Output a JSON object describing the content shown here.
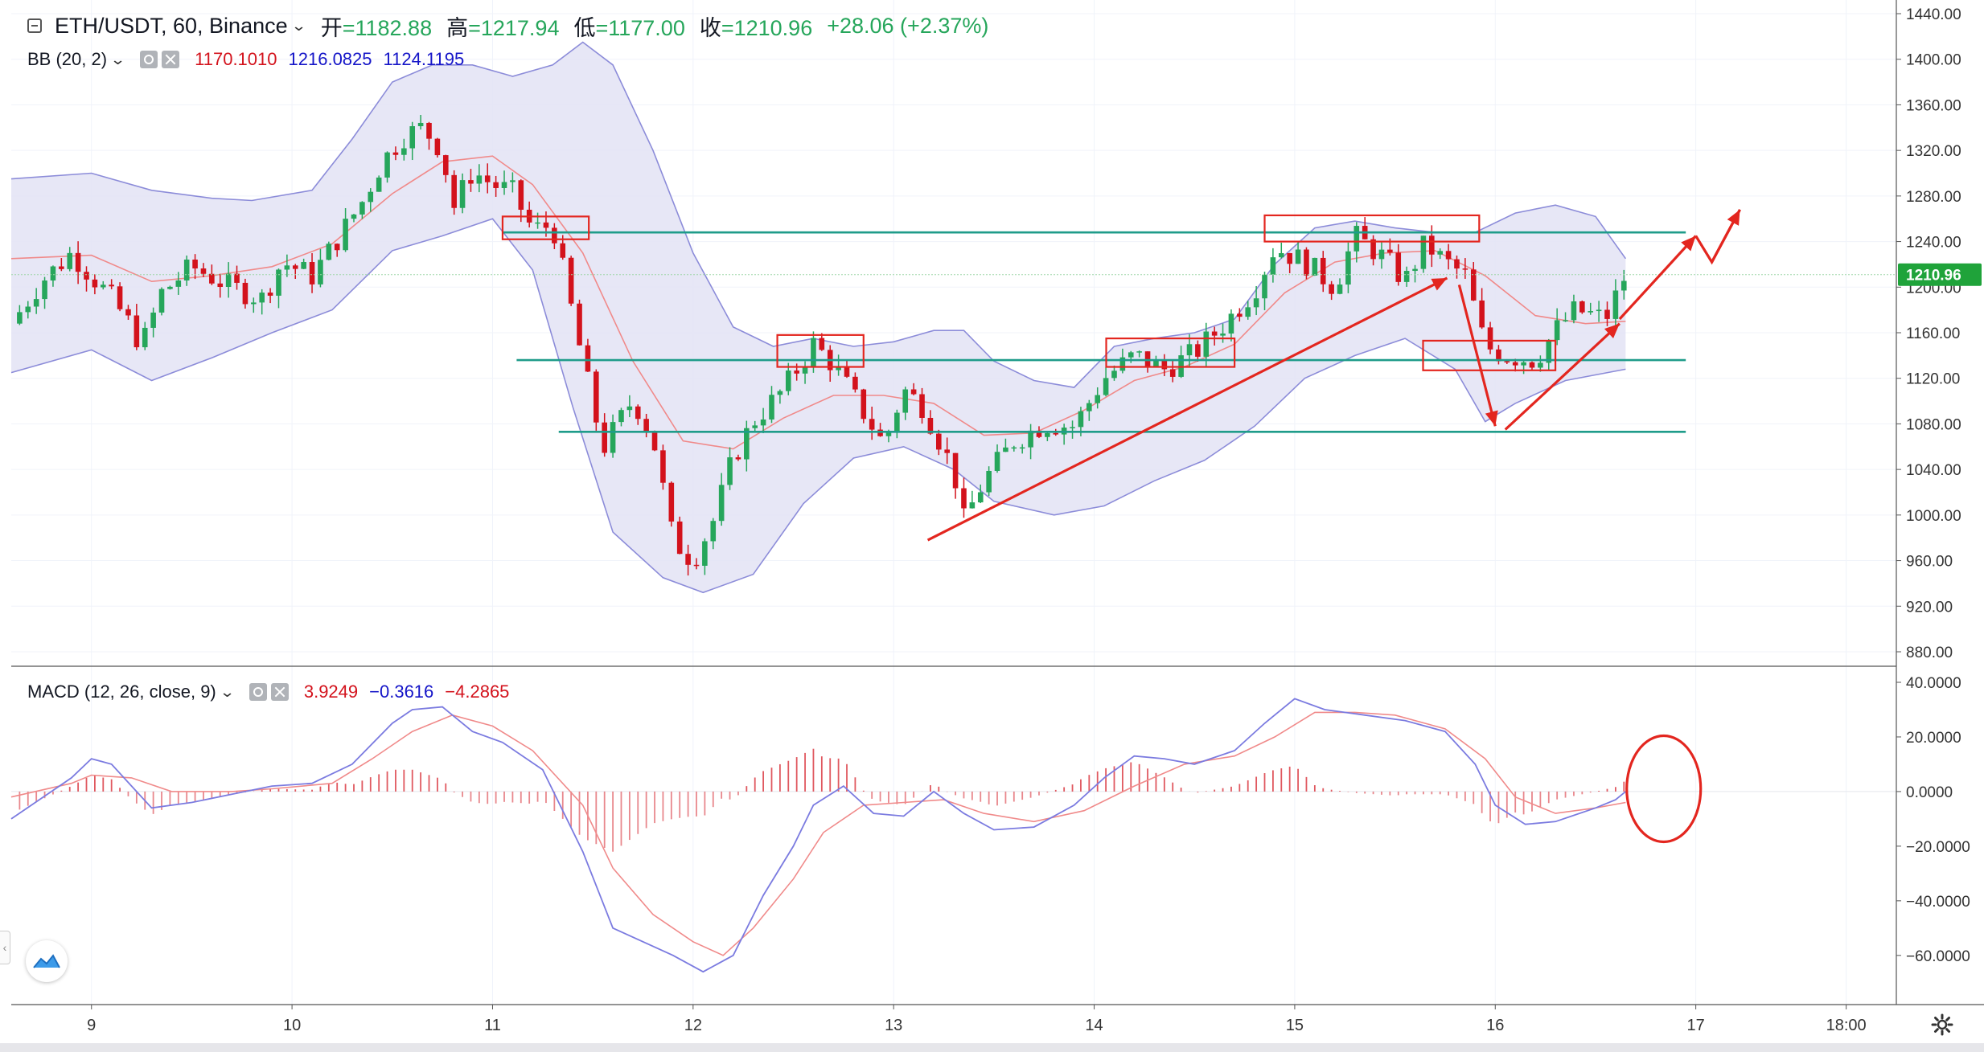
{
  "header": {
    "symbol": "ETH/USDT, 60, Binance",
    "open_label": "开",
    "open": "=1182.88",
    "high_label": "高",
    "high": "=1217.94",
    "low_label": "低",
    "low": "=1177.00",
    "close_label": "收",
    "close": "=1210.96",
    "change": "+28.06 (+2.37%)"
  },
  "bb": {
    "label": "BB (20, 2)",
    "middle": "1170.1010",
    "upper": "1216.0825",
    "lower": "1124.1195"
  },
  "macd": {
    "label": "MACD (12, 26, close, 9)",
    "histogram": "3.9249",
    "macd": "−0.3616",
    "signal": "−4.2865"
  },
  "colors": {
    "up": "#26a65b",
    "down": "#d3121c",
    "bb_fill": "#e3e3f4",
    "bb_band": "#8c8cd9",
    "bb_basis": "#f08a8a",
    "level": "#1f9c8a",
    "annotation": "#e3261f",
    "price_tag": "#1fa33a",
    "macd_line": "#7b7be0",
    "signal_line": "#f08a8a"
  },
  "chart_data": [
    {
      "type": "candlestick",
      "title": "ETH/USDT, 60, Binance",
      "x_ticks": [
        "9",
        "10",
        "11",
        "12",
        "13",
        "14",
        "15",
        "16",
        "17",
        "18:00"
      ],
      "y_ticks": [
        "880.00",
        "920.00",
        "960.00",
        "1000.00",
        "1040.00",
        "1080.00",
        "1120.00",
        "1160.00",
        "1200.00",
        "1240.00",
        "1280.00",
        "1320.00",
        "1360.00",
        "1400.00",
        "1440.00"
      ],
      "ylim": [
        868,
        1452
      ],
      "xlim_days": [
        8.6,
        18.0
      ],
      "last_price": "1210.96",
      "price_path": [
        [
          8.6,
          1168
        ],
        [
          8.75,
          1205
        ],
        [
          8.9,
          1230
        ],
        [
          9.0,
          1210
        ],
        [
          9.1,
          1190
        ],
        [
          9.2,
          1165
        ],
        [
          9.25,
          1148
        ],
        [
          9.35,
          1195
        ],
        [
          9.5,
          1218
        ],
        [
          9.7,
          1200
        ],
        [
          9.85,
          1190
        ],
        [
          9.95,
          1222
        ],
        [
          10.1,
          1210
        ],
        [
          10.2,
          1235
        ],
        [
          10.35,
          1275
        ],
        [
          10.45,
          1310
        ],
        [
          10.55,
          1332
        ],
        [
          10.65,
          1340
        ],
        [
          10.75,
          1320
        ],
        [
          10.8,
          1268
        ],
        [
          10.9,
          1302
        ],
        [
          11.0,
          1290
        ],
        [
          11.1,
          1283
        ],
        [
          11.2,
          1250
        ],
        [
          11.3,
          1255
        ],
        [
          11.45,
          1135
        ],
        [
          11.55,
          1058
        ],
        [
          11.7,
          1102
        ],
        [
          11.8,
          1068
        ],
        [
          11.9,
          978
        ],
        [
          12.0,
          960
        ],
        [
          12.1,
          995
        ],
        [
          12.2,
          1050
        ],
        [
          12.3,
          1082
        ],
        [
          12.45,
          1110
        ],
        [
          12.6,
          1150
        ],
        [
          12.7,
          1132
        ],
        [
          12.85,
          1090
        ],
        [
          12.95,
          1062
        ],
        [
          13.05,
          1110
        ],
        [
          13.15,
          1095
        ],
        [
          13.3,
          1038
        ],
        [
          13.35,
          995
        ],
        [
          13.45,
          1030
        ],
        [
          13.6,
          1065
        ],
        [
          13.75,
          1080
        ],
        [
          13.9,
          1078
        ],
        [
          14.05,
          1120
        ],
        [
          14.2,
          1140
        ],
        [
          14.35,
          1128
        ],
        [
          14.5,
          1142
        ],
        [
          14.65,
          1168
        ],
        [
          14.8,
          1198
        ],
        [
          14.9,
          1235
        ],
        [
          15.05,
          1222
        ],
        [
          15.2,
          1200
        ],
        [
          15.3,
          1245
        ],
        [
          15.45,
          1225
        ],
        [
          15.55,
          1205
        ],
        [
          15.65,
          1238
        ],
        [
          15.75,
          1222
        ],
        [
          15.85,
          1210
        ],
        [
          15.95,
          1148
        ],
        [
          16.05,
          1140
        ],
        [
          16.2,
          1136
        ],
        [
          16.3,
          1162
        ],
        [
          16.4,
          1180
        ],
        [
          16.55,
          1172
        ],
        [
          16.65,
          1211
        ]
      ],
      "bollinger": {
        "upper": [
          [
            8.6,
            1295
          ],
          [
            9.0,
            1300
          ],
          [
            9.3,
            1285
          ],
          [
            9.6,
            1278
          ],
          [
            9.8,
            1276
          ],
          [
            10.1,
            1285
          ],
          [
            10.3,
            1330
          ],
          [
            10.5,
            1380
          ],
          [
            10.7,
            1395
          ],
          [
            10.9,
            1395
          ],
          [
            11.1,
            1385
          ],
          [
            11.3,
            1395
          ],
          [
            11.45,
            1415
          ],
          [
            11.6,
            1395
          ],
          [
            11.8,
            1320
          ],
          [
            12.0,
            1230
          ],
          [
            12.2,
            1165
          ],
          [
            12.4,
            1148
          ],
          [
            12.6,
            1155
          ],
          [
            12.8,
            1148
          ],
          [
            13.0,
            1152
          ],
          [
            13.2,
            1162
          ],
          [
            13.35,
            1162
          ],
          [
            13.5,
            1135
          ],
          [
            13.7,
            1118
          ],
          [
            13.9,
            1112
          ],
          [
            14.1,
            1148
          ],
          [
            14.3,
            1155
          ],
          [
            14.5,
            1160
          ],
          [
            14.7,
            1172
          ],
          [
            14.9,
            1220
          ],
          [
            15.1,
            1252
          ],
          [
            15.3,
            1258
          ],
          [
            15.5,
            1252
          ],
          [
            15.7,
            1248
          ],
          [
            15.9,
            1248
          ],
          [
            16.1,
            1265
          ],
          [
            16.3,
            1272
          ],
          [
            16.5,
            1262
          ],
          [
            16.65,
            1225
          ]
        ],
        "basis": [
          [
            8.6,
            1225
          ],
          [
            9.0,
            1228
          ],
          [
            9.3,
            1205
          ],
          [
            9.6,
            1210
          ],
          [
            9.9,
            1218
          ],
          [
            10.2,
            1238
          ],
          [
            10.5,
            1282
          ],
          [
            10.75,
            1310
          ],
          [
            11.0,
            1315
          ],
          [
            11.2,
            1290
          ],
          [
            11.45,
            1230
          ],
          [
            11.7,
            1135
          ],
          [
            11.95,
            1065
          ],
          [
            12.2,
            1058
          ],
          [
            12.45,
            1085
          ],
          [
            12.7,
            1105
          ],
          [
            12.95,
            1105
          ],
          [
            13.2,
            1098
          ],
          [
            13.45,
            1070
          ],
          [
            13.7,
            1072
          ],
          [
            13.95,
            1092
          ],
          [
            14.2,
            1118
          ],
          [
            14.45,
            1130
          ],
          [
            14.7,
            1150
          ],
          [
            14.95,
            1195
          ],
          [
            15.2,
            1222
          ],
          [
            15.45,
            1230
          ],
          [
            15.7,
            1232
          ],
          [
            15.95,
            1210
          ],
          [
            16.2,
            1175
          ],
          [
            16.45,
            1168
          ],
          [
            16.65,
            1170
          ]
        ],
        "lower": [
          [
            8.6,
            1125
          ],
          [
            9.0,
            1145
          ],
          [
            9.3,
            1118
          ],
          [
            9.6,
            1138
          ],
          [
            9.9,
            1160
          ],
          [
            10.2,
            1180
          ],
          [
            10.5,
            1232
          ],
          [
            10.75,
            1245
          ],
          [
            11.0,
            1260
          ],
          [
            11.2,
            1215
          ],
          [
            11.4,
            1095
          ],
          [
            11.6,
            985
          ],
          [
            11.85,
            945
          ],
          [
            12.05,
            932
          ],
          [
            12.3,
            948
          ],
          [
            12.55,
            1010
          ],
          [
            12.8,
            1050
          ],
          [
            13.05,
            1060
          ],
          [
            13.3,
            1040
          ],
          [
            13.5,
            1012
          ],
          [
            13.8,
            1000
          ],
          [
            14.05,
            1008
          ],
          [
            14.3,
            1030
          ],
          [
            14.55,
            1048
          ],
          [
            14.8,
            1078
          ],
          [
            15.05,
            1120
          ],
          [
            15.3,
            1140
          ],
          [
            15.55,
            1155
          ],
          [
            15.8,
            1128
          ],
          [
            15.95,
            1082
          ],
          [
            16.1,
            1098
          ],
          [
            16.35,
            1118
          ],
          [
            16.65,
            1128
          ]
        ]
      },
      "horizontal_levels": [
        {
          "price": 1248,
          "from": 11.05,
          "to": 16.95
        },
        {
          "price": 1136,
          "from": 11.12,
          "to": 16.95
        },
        {
          "price": 1073,
          "from": 11.33,
          "to": 16.95
        }
      ],
      "boxes": [
        {
          "day_from": 11.05,
          "day_to": 11.48,
          "price_hi": 1262,
          "price_lo": 1242
        },
        {
          "day_from": 12.42,
          "day_to": 12.85,
          "price_hi": 1158,
          "price_lo": 1130
        },
        {
          "day_from": 14.06,
          "day_to": 14.7,
          "price_hi": 1155,
          "price_lo": 1130
        },
        {
          "day_from": 14.85,
          "day_to": 15.92,
          "price_hi": 1263,
          "price_lo": 1240
        },
        {
          "day_from": 15.64,
          "day_to": 16.3,
          "price_hi": 1153,
          "price_lo": 1127
        }
      ],
      "arrows": [
        {
          "from": [
            13.17,
            978
          ],
          "to": [
            15.76,
            1208
          ]
        },
        {
          "from": [
            15.82,
            1202
          ],
          "to": [
            16.0,
            1078
          ]
        },
        {
          "from": [
            16.05,
            1075
          ],
          "to": [
            16.62,
            1168
          ]
        },
        {
          "from": [
            16.62,
            1172
          ],
          "to": [
            17.0,
            1245
          ]
        }
      ],
      "polyline": [
        [
          16.62,
          1172
        ],
        [
          17.0,
          1245
        ],
        [
          17.08,
          1222
        ],
        [
          17.22,
          1268
        ]
      ]
    },
    {
      "type": "macd",
      "title": "MACD (12, 26, close, 9)",
      "y_ticks": [
        "40.0000",
        "20.0000",
        "0.0000",
        "−20.0000",
        "−40.0000",
        "−60.0000"
      ],
      "ylim": [
        -78,
        45
      ],
      "macd_line": [
        [
          8.6,
          -10
        ],
        [
          8.9,
          5
        ],
        [
          9.0,
          12
        ],
        [
          9.1,
          10
        ],
        [
          9.2,
          2
        ],
        [
          9.3,
          -6
        ],
        [
          9.5,
          -4
        ],
        [
          9.7,
          -1
        ],
        [
          9.9,
          2
        ],
        [
          10.1,
          3
        ],
        [
          10.3,
          10
        ],
        [
          10.5,
          25
        ],
        [
          10.6,
          30
        ],
        [
          10.75,
          31
        ],
        [
          10.9,
          22
        ],
        [
          11.05,
          18
        ],
        [
          11.25,
          8
        ],
        [
          11.45,
          -22
        ],
        [
          11.6,
          -50
        ],
        [
          11.75,
          -55
        ],
        [
          11.9,
          -60
        ],
        [
          12.05,
          -66
        ],
        [
          12.2,
          -60
        ],
        [
          12.35,
          -38
        ],
        [
          12.5,
          -20
        ],
        [
          12.6,
          -5
        ],
        [
          12.75,
          2
        ],
        [
          12.9,
          -8
        ],
        [
          13.05,
          -9
        ],
        [
          13.2,
          0
        ],
        [
          13.35,
          -8
        ],
        [
          13.5,
          -14
        ],
        [
          13.7,
          -13
        ],
        [
          13.9,
          -5
        ],
        [
          14.05,
          5
        ],
        [
          14.2,
          13
        ],
        [
          14.35,
          12
        ],
        [
          14.5,
          10
        ],
        [
          14.7,
          15
        ],
        [
          14.85,
          25
        ],
        [
          15.0,
          34
        ],
        [
          15.15,
          30
        ],
        [
          15.35,
          28
        ],
        [
          15.55,
          26
        ],
        [
          15.75,
          22
        ],
        [
          15.9,
          10
        ],
        [
          16.0,
          -5
        ],
        [
          16.15,
          -12
        ],
        [
          16.3,
          -11
        ],
        [
          16.5,
          -6
        ],
        [
          16.6,
          -3
        ],
        [
          16.65,
          0
        ]
      ],
      "signal_line": [
        [
          8.6,
          -2
        ],
        [
          8.9,
          3
        ],
        [
          9.0,
          6
        ],
        [
          9.2,
          5
        ],
        [
          9.4,
          0
        ],
        [
          9.7,
          0
        ],
        [
          9.9,
          1
        ],
        [
          10.2,
          3
        ],
        [
          10.4,
          12
        ],
        [
          10.6,
          22
        ],
        [
          10.8,
          28
        ],
        [
          11.0,
          24
        ],
        [
          11.2,
          15
        ],
        [
          11.45,
          -5
        ],
        [
          11.6,
          -28
        ],
        [
          11.8,
          -45
        ],
        [
          12.0,
          -55
        ],
        [
          12.15,
          -60
        ],
        [
          12.3,
          -50
        ],
        [
          12.5,
          -32
        ],
        [
          12.65,
          -15
        ],
        [
          12.85,
          -5
        ],
        [
          13.05,
          -4
        ],
        [
          13.25,
          -3
        ],
        [
          13.45,
          -8
        ],
        [
          13.7,
          -11
        ],
        [
          13.95,
          -7
        ],
        [
          14.2,
          2
        ],
        [
          14.45,
          10
        ],
        [
          14.7,
          13
        ],
        [
          14.9,
          20
        ],
        [
          15.1,
          29
        ],
        [
          15.3,
          29
        ],
        [
          15.5,
          28
        ],
        [
          15.75,
          23
        ],
        [
          15.95,
          12
        ],
        [
          16.1,
          -2
        ],
        [
          16.3,
          -8
        ],
        [
          16.5,
          -6
        ],
        [
          16.65,
          -4
        ]
      ],
      "highlight_circle": {
        "day": 16.84,
        "value": 1
      }
    }
  ]
}
